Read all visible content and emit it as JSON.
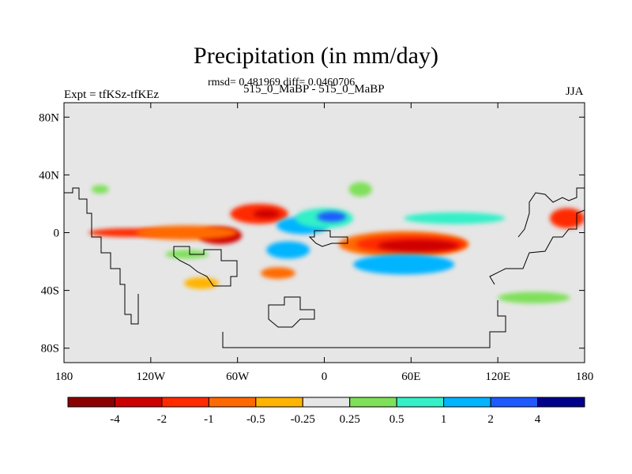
{
  "chart_data": {
    "type": "heatmap",
    "title": "Precipitation (in mm/day)",
    "stats_line": "rmsd= 0.481969 diff= 0.0460706",
    "subtitle": "515_0_MaBP - 515_0_MaBP",
    "left_label": "Expt = tfKSz-tfKEz",
    "right_label": "JJA",
    "x_ticks": [
      "180",
      "120W",
      "60W",
      "0",
      "60E",
      "120E",
      "180"
    ],
    "x_tick_values": [
      -180,
      -120,
      -60,
      0,
      60,
      120,
      180
    ],
    "y_ticks": [
      "80N",
      "40N",
      "0",
      "40S",
      "80S"
    ],
    "y_tick_values": [
      80,
      40,
      0,
      -40,
      -80
    ],
    "xlim": [
      -180,
      180
    ],
    "ylim": [
      -90,
      90
    ],
    "colorbar": {
      "labels": [
        "-4",
        "-2",
        "-1",
        "-0.5",
        "-0.25",
        "0.25",
        "0.5",
        "1",
        "2",
        "4"
      ],
      "colors": [
        "#8b0000",
        "#cd0000",
        "#ff2a00",
        "#ff6a00",
        "#ffb400",
        "#e6e6e6",
        "#7fe05a",
        "#33f0c8",
        "#00b4ff",
        "#1e5aff",
        "#00008b"
      ]
    },
    "field_blobs": [
      {
        "lon": -135,
        "lat": 0,
        "rx": 28,
        "ry": 3,
        "level": "-1"
      },
      {
        "lon": -72,
        "lat": -2,
        "rx": 15,
        "ry": 6,
        "level": "-2"
      },
      {
        "lon": -95,
        "lat": 0,
        "rx": 35,
        "ry": 5,
        "level": "-0.5"
      },
      {
        "lon": -45,
        "lat": 13,
        "rx": 20,
        "ry": 7,
        "level": "-1"
      },
      {
        "lon": -40,
        "lat": 13,
        "rx": 9,
        "ry": 3,
        "level": "-2"
      },
      {
        "lon": -15,
        "lat": 5,
        "rx": 18,
        "ry": 6,
        "level": "1"
      },
      {
        "lon": 0,
        "lat": 10,
        "rx": 20,
        "ry": 7,
        "level": "0.5"
      },
      {
        "lon": 5,
        "lat": 11,
        "rx": 10,
        "ry": 3.5,
        "level": "2"
      },
      {
        "lon": -25,
        "lat": -12,
        "rx": 15,
        "ry": 6,
        "level": "1"
      },
      {
        "lon": -32,
        "lat": -28,
        "rx": 12,
        "ry": 4,
        "level": "-0.5"
      },
      {
        "lon": -85,
        "lat": -35,
        "rx": 12,
        "ry": 4,
        "level": "-0.25"
      },
      {
        "lon": 55,
        "lat": -8,
        "rx": 45,
        "ry": 9,
        "level": "-0.5"
      },
      {
        "lon": 60,
        "lat": -8,
        "rx": 38,
        "ry": 6,
        "level": "-1"
      },
      {
        "lon": 65,
        "lat": -9,
        "rx": 28,
        "ry": 4,
        "level": "-2"
      },
      {
        "lon": 55,
        "lat": -22,
        "rx": 35,
        "ry": 7,
        "level": "1"
      },
      {
        "lon": 90,
        "lat": 10,
        "rx": 35,
        "ry": 4,
        "level": "0.5"
      },
      {
        "lon": 168,
        "lat": 10,
        "rx": 12,
        "ry": 7,
        "level": "-1"
      },
      {
        "lon": 25,
        "lat": 30,
        "rx": 8,
        "ry": 5,
        "level": "0.25"
      },
      {
        "lon": -155,
        "lat": 30,
        "rx": 6,
        "ry": 3,
        "level": "0.25"
      },
      {
        "lon": 145,
        "lat": -45,
        "rx": 25,
        "ry": 4,
        "level": "0.25"
      },
      {
        "lon": -95,
        "lat": -15,
        "rx": 15,
        "ry": 3,
        "level": "0.25"
      }
    ]
  }
}
